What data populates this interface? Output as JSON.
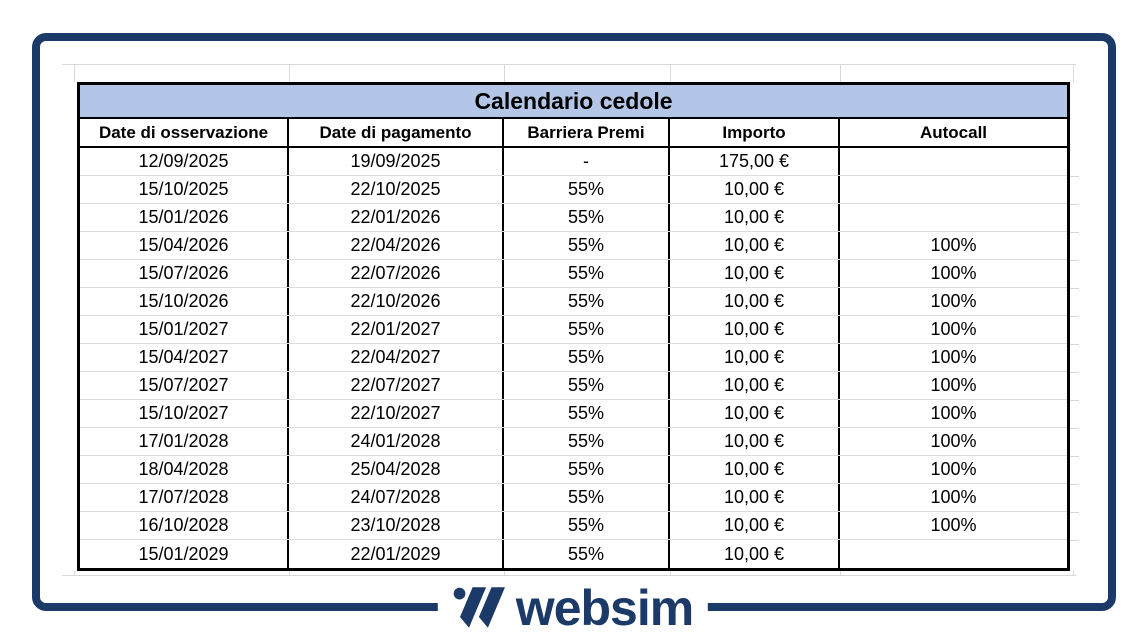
{
  "colors": {
    "accent_navy": "#1b3a67",
    "title_bg": "#b4c6e7",
    "gridline": "#d9d9d9",
    "table_border": "#000000"
  },
  "table": {
    "title": "Calendario cedole",
    "columns": [
      "Date di osservazione",
      "Date di pagamento",
      "Barriera Premi",
      "Importo",
      "Autocall"
    ],
    "rows": [
      [
        "12/09/2025",
        "19/09/2025",
        "-",
        "175,00 €",
        ""
      ],
      [
        "15/10/2025",
        "22/10/2025",
        "55%",
        "10,00 €",
        ""
      ],
      [
        "15/01/2026",
        "22/01/2026",
        "55%",
        "10,00 €",
        ""
      ],
      [
        "15/04/2026",
        "22/04/2026",
        "55%",
        "10,00 €",
        "100%"
      ],
      [
        "15/07/2026",
        "22/07/2026",
        "55%",
        "10,00 €",
        "100%"
      ],
      [
        "15/10/2026",
        "22/10/2026",
        "55%",
        "10,00 €",
        "100%"
      ],
      [
        "15/01/2027",
        "22/01/2027",
        "55%",
        "10,00 €",
        "100%"
      ],
      [
        "15/04/2027",
        "22/04/2027",
        "55%",
        "10,00 €",
        "100%"
      ],
      [
        "15/07/2027",
        "22/07/2027",
        "55%",
        "10,00 €",
        "100%"
      ],
      [
        "15/10/2027",
        "22/10/2027",
        "55%",
        "10,00 €",
        "100%"
      ],
      [
        "17/01/2028",
        "24/01/2028",
        "55%",
        "10,00 €",
        "100%"
      ],
      [
        "18/04/2028",
        "25/04/2028",
        "55%",
        "10,00 €",
        "100%"
      ],
      [
        "17/07/2028",
        "24/07/2028",
        "55%",
        "10,00 €",
        "100%"
      ],
      [
        "16/10/2028",
        "23/10/2028",
        "55%",
        "10,00 €",
        "100%"
      ],
      [
        "15/01/2029",
        "22/01/2029",
        "55%",
        "10,00 €",
        ""
      ]
    ]
  },
  "logo": {
    "text": "websim"
  }
}
